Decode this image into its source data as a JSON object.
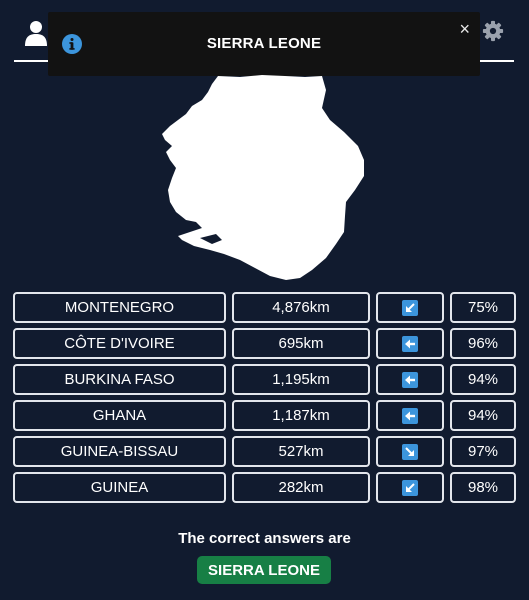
{
  "toast": {
    "title": "SIERRA LEONE",
    "close_label": "×",
    "icon": "info-icon"
  },
  "header": {
    "left_icon": "user-icon",
    "right_icon": "gear-icon"
  },
  "guesses": [
    {
      "country": "MONTENEGRO",
      "distance": "4,876km",
      "direction": "southwest",
      "proximity": "75%"
    },
    {
      "country": "CÔTE D'IVOIRE",
      "distance": "695km",
      "direction": "west",
      "proximity": "96%"
    },
    {
      "country": "BURKINA FASO",
      "distance": "1,195km",
      "direction": "west",
      "proximity": "94%"
    },
    {
      "country": "GHANA",
      "distance": "1,187km",
      "direction": "west",
      "proximity": "94%"
    },
    {
      "country": "GUINEA-BISSAU",
      "distance": "527km",
      "direction": "southeast",
      "proximity": "97%"
    },
    {
      "country": "GUINEA",
      "distance": "282km",
      "direction": "southwest",
      "proximity": "98%"
    }
  ],
  "answer": {
    "label": "The correct answers are",
    "country": "SIERRA LEONE"
  },
  "colors": {
    "background": "#111b2f",
    "arrow_box": "#3c95dc",
    "answer_badge": "#177f45",
    "toast_bg": "#121212"
  }
}
